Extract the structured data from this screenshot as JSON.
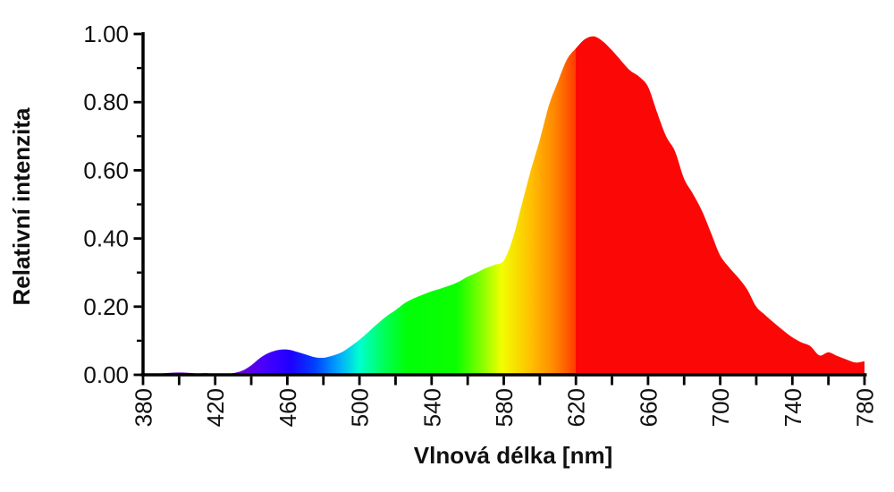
{
  "figure": {
    "x_axis_label": "Vlnová délka [nm]",
    "y_axis_label": "Relativní intenzita",
    "background_color": "#ffffff",
    "axis_color": "#000000",
    "text_color": "#101010"
  },
  "chart_data": {
    "type": "area",
    "title": "",
    "xlabel": "Vlnová délka [nm]",
    "ylabel": "Relativní intenzita",
    "xlim": [
      380,
      780
    ],
    "ylim": [
      0,
      1.0
    ],
    "grid": false,
    "legend": null,
    "x_ticks_all": [
      380,
      400,
      420,
      440,
      460,
      480,
      500,
      520,
      540,
      560,
      580,
      600,
      620,
      640,
      660,
      680,
      700,
      720,
      740,
      760,
      780
    ],
    "x_tick_labels": [
      {
        "value": 380,
        "label": "380"
      },
      {
        "value": 420,
        "label": "420"
      },
      {
        "value": 460,
        "label": "460"
      },
      {
        "value": 500,
        "label": "500"
      },
      {
        "value": 540,
        "label": "540"
      },
      {
        "value": 580,
        "label": "580"
      },
      {
        "value": 620,
        "label": "620"
      },
      {
        "value": 660,
        "label": "660"
      },
      {
        "value": 700,
        "label": "700"
      },
      {
        "value": 740,
        "label": "740"
      },
      {
        "value": 780,
        "label": "780"
      }
    ],
    "y_tick_labels": [
      {
        "value": 0.0,
        "label": "0.00"
      },
      {
        "value": 0.2,
        "label": "0.20"
      },
      {
        "value": 0.4,
        "label": "0.40"
      },
      {
        "value": 0.6,
        "label": "0.60"
      },
      {
        "value": 0.8,
        "label": "0.80"
      },
      {
        "value": 1.0,
        "label": "1.00"
      }
    ],
    "y_ticks_minor": [
      0.1,
      0.3,
      0.5,
      0.7,
      0.9
    ],
    "series": [
      {
        "name": "relative-intensity-spectrum",
        "x": [
          380,
          385,
          390,
          395,
          400,
          405,
          410,
          415,
          420,
          425,
          430,
          435,
          440,
          445,
          450,
          455,
          460,
          465,
          470,
          475,
          480,
          485,
          490,
          495,
          500,
          505,
          510,
          515,
          520,
          525,
          530,
          535,
          540,
          545,
          550,
          555,
          560,
          565,
          570,
          575,
          580,
          585,
          590,
          595,
          600,
          605,
          610,
          615,
          620,
          625,
          630,
          635,
          640,
          645,
          650,
          655,
          660,
          665,
          670,
          675,
          680,
          685,
          690,
          695,
          700,
          705,
          710,
          715,
          720,
          725,
          730,
          735,
          740,
          745,
          750,
          755,
          760,
          765,
          770,
          775,
          780
        ],
        "y": [
          0.0,
          0.002,
          0.004,
          0.006,
          0.007,
          0.006,
          0.004,
          0.005,
          0.002,
          0.002,
          0.005,
          0.012,
          0.028,
          0.05,
          0.065,
          0.073,
          0.074,
          0.068,
          0.06,
          0.052,
          0.05,
          0.056,
          0.066,
          0.083,
          0.103,
          0.126,
          0.15,
          0.172,
          0.19,
          0.21,
          0.224,
          0.235,
          0.245,
          0.253,
          0.262,
          0.273,
          0.288,
          0.3,
          0.313,
          0.323,
          0.335,
          0.4,
          0.5,
          0.6,
          0.69,
          0.79,
          0.86,
          0.925,
          0.958,
          0.985,
          0.993,
          0.978,
          0.952,
          0.922,
          0.893,
          0.875,
          0.845,
          0.77,
          0.7,
          0.655,
          0.575,
          0.53,
          0.48,
          0.415,
          0.35,
          0.315,
          0.285,
          0.25,
          0.2,
          0.175,
          0.152,
          0.13,
          0.11,
          0.095,
          0.084,
          0.057,
          0.066,
          0.055,
          0.045,
          0.036,
          0.04
        ]
      }
    ],
    "fill_gradient_stops": [
      {
        "offset": 0.0,
        "color": "#7a00b8"
      },
      {
        "offset": 0.135,
        "color": "#6a00d8"
      },
      {
        "offset": 0.17,
        "color": "#4600ff"
      },
      {
        "offset": 0.205,
        "color": "#1e00ff"
      },
      {
        "offset": 0.238,
        "color": "#0040ff"
      },
      {
        "offset": 0.272,
        "color": "#00aaff"
      },
      {
        "offset": 0.3,
        "color": "#00ffcf"
      },
      {
        "offset": 0.335,
        "color": "#00ff55"
      },
      {
        "offset": 0.365,
        "color": "#00ff08"
      },
      {
        "offset": 0.435,
        "color": "#0cff00"
      },
      {
        "offset": 0.47,
        "color": "#86ff00"
      },
      {
        "offset": 0.497,
        "color": "#f2ff00"
      },
      {
        "offset": 0.54,
        "color": "#ffbb00"
      },
      {
        "offset": 0.57,
        "color": "#ff8800"
      },
      {
        "offset": 0.5995,
        "color": "#ff3c00"
      },
      {
        "offset": 0.6,
        "color": "#fb0806"
      },
      {
        "offset": 1.0,
        "color": "#fb0806"
      }
    ]
  }
}
